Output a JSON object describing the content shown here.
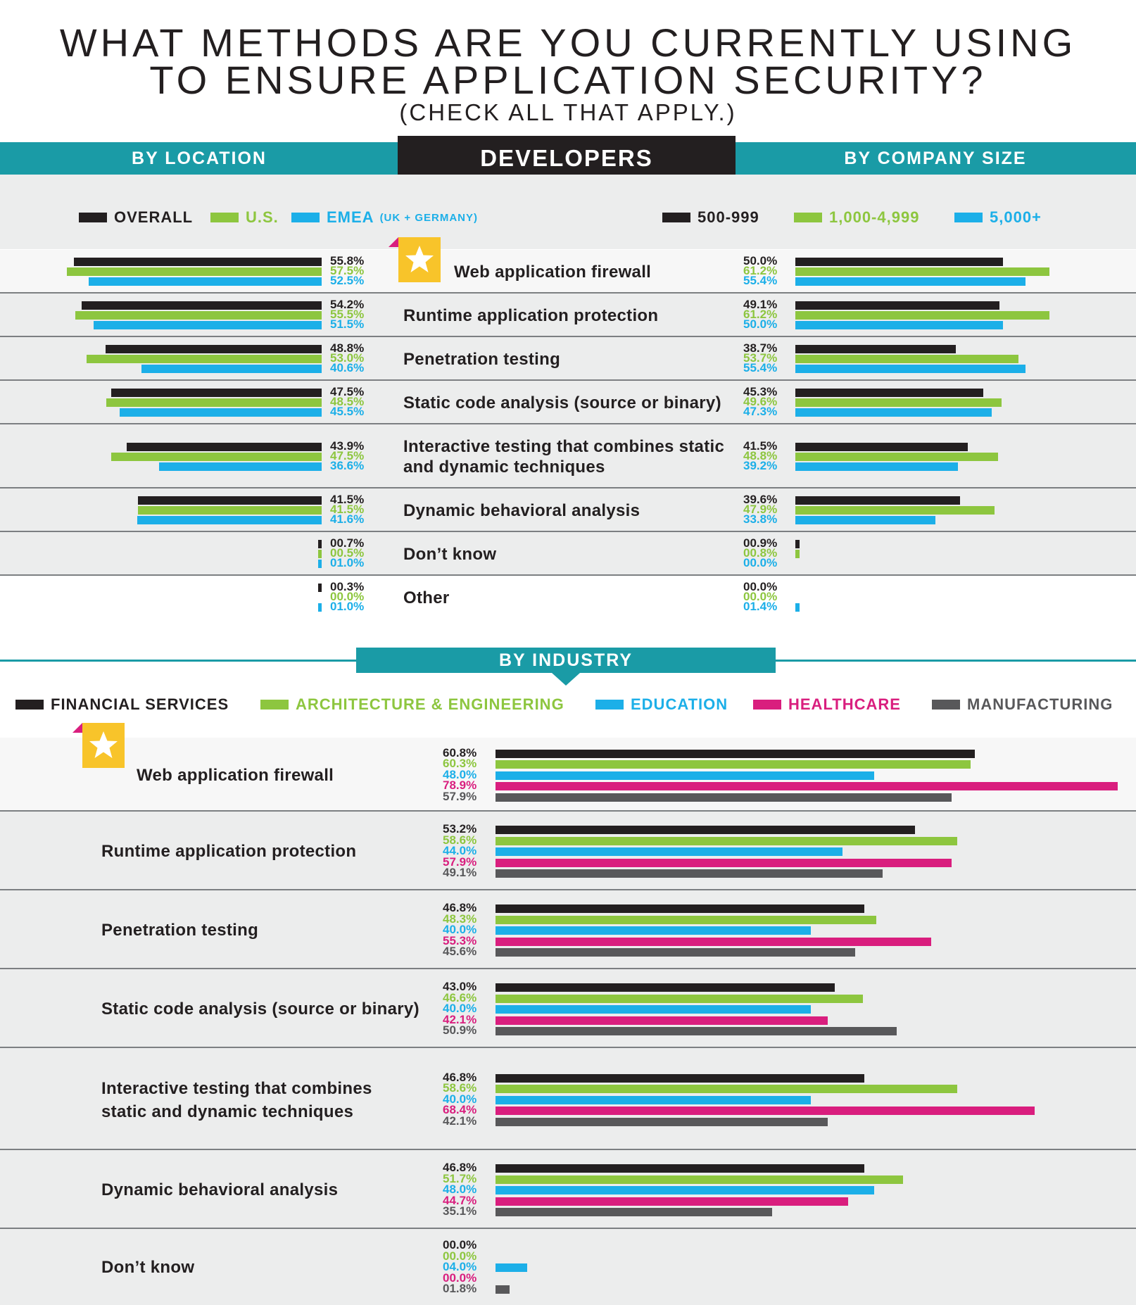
{
  "title": {
    "line1": "WHAT METHODS ARE YOU CURRENTLY USING",
    "line2": "TO ENSURE APPLICATION SECURITY?",
    "subtitle": "(CHECK ALL THAT APPLY.)"
  },
  "header": {
    "by_location": "BY LOCATION",
    "developers": "DEVELOPERS",
    "by_company_size": "BY COMPANY SIZE",
    "by_industry": "BY INDUSTRY"
  },
  "legends": {
    "location": [
      "OVERALL",
      "U.S.",
      "EMEA"
    ],
    "location_note": "(UK + GERMANY)",
    "size": [
      "500-999",
      "1,000-4,999",
      "5,000+"
    ],
    "industry": [
      "FINANCIAL SERVICES",
      "ARCHITECTURE & ENGINEERING",
      "EDUCATION",
      "HEALTHCARE",
      "MANUFACTURING"
    ]
  },
  "colors": {
    "black": "#231f20",
    "green": "#8dc63f",
    "blue": "#1cafe8",
    "pink": "#d91e7e",
    "gray": "#58585a",
    "teal": "#1a9ba6",
    "star": "#f8c42a"
  },
  "icons": {
    "highlight": "star-icon"
  },
  "chart_data": [
    {
      "type": "bar",
      "title": "BY LOCATION",
      "orientation": "horizontal",
      "categories": [
        "Web application firewall",
        "Runtime application protection",
        "Penetration testing",
        "Static code analysis (source or binary)",
        "Interactive testing that combines static and dynamic techniques",
        "Dynamic behavioral analysis",
        "Don’t know",
        "Other"
      ],
      "series": [
        {
          "name": "OVERALL",
          "values": [
            55.8,
            54.2,
            48.8,
            47.5,
            43.9,
            41.5,
            0.7,
            0.3
          ],
          "labels": [
            "55.8%",
            "54.2%",
            "48.8%",
            "47.5%",
            "43.9%",
            "41.5%",
            "00.7%",
            "00.3%"
          ]
        },
        {
          "name": "U.S.",
          "values": [
            57.5,
            55.5,
            53.0,
            48.5,
            47.5,
            41.5,
            0.5,
            0.0
          ],
          "labels": [
            "57.5%",
            "55.5%",
            "53.0%",
            "48.5%",
            "47.5%",
            "41.5%",
            "00.5%",
            "00.0%"
          ]
        },
        {
          "name": "EMEA (UK + GERMANY)",
          "values": [
            52.5,
            51.5,
            40.6,
            45.5,
            36.6,
            41.6,
            1.0,
            1.0
          ],
          "labels": [
            "52.5%",
            "51.5%",
            "40.6%",
            "45.5%",
            "36.6%",
            "41.6%",
            "01.0%",
            "01.0%"
          ]
        }
      ],
      "highlight_category": "Web application firewall"
    },
    {
      "type": "bar",
      "title": "BY COMPANY SIZE",
      "orientation": "horizontal",
      "categories": [
        "Web application firewall",
        "Runtime application protection",
        "Penetration testing",
        "Static code analysis (source or binary)",
        "Interactive testing that combines static and dynamic techniques",
        "Dynamic behavioral analysis",
        "Don’t know",
        "Other"
      ],
      "series": [
        {
          "name": "500-999",
          "values": [
            50.0,
            49.1,
            38.7,
            45.3,
            41.5,
            39.6,
            0.9,
            0.0
          ],
          "labels": [
            "50.0%",
            "49.1%",
            "38.7%",
            "45.3%",
            "41.5%",
            "39.6%",
            "00.9%",
            "00.0%"
          ]
        },
        {
          "name": "1,000-4,999",
          "values": [
            61.2,
            61.2,
            53.7,
            49.6,
            48.8,
            47.9,
            0.8,
            0.0
          ],
          "labels": [
            "61.2%",
            "61.2%",
            "53.7%",
            "49.6%",
            "48.8%",
            "47.9%",
            "00.8%",
            "00.0%"
          ]
        },
        {
          "name": "5,000+",
          "values": [
            55.4,
            50.0,
            55.4,
            47.3,
            39.2,
            33.8,
            0.0,
            1.4
          ],
          "labels": [
            "55.4%",
            "50.0%",
            "55.4%",
            "47.3%",
            "39.2%",
            "33.8%",
            "00.0%",
            "01.4%"
          ]
        }
      ]
    },
    {
      "type": "bar",
      "title": "BY INDUSTRY",
      "orientation": "horizontal",
      "categories": [
        "Web application firewall",
        "Runtime application protection",
        "Penetration testing",
        "Static code analysis (source or binary)",
        "Interactive testing that combines static and dynamic techniques",
        "Dynamic behavioral analysis",
        "Don’t know"
      ],
      "series": [
        {
          "name": "FINANCIAL SERVICES",
          "values": [
            60.8,
            53.2,
            46.8,
            43.0,
            46.8,
            46.8,
            0.0
          ],
          "labels": [
            "60.8%",
            "53.2%",
            "46.8%",
            "43.0%",
            "46.8%",
            "46.8%",
            "00.0%"
          ]
        },
        {
          "name": "ARCHITECTURE & ENGINEERING",
          "values": [
            60.3,
            58.6,
            48.3,
            46.6,
            58.6,
            51.7,
            0.0
          ],
          "labels": [
            "60.3%",
            "58.6%",
            "48.3%",
            "46.6%",
            "58.6%",
            "51.7%",
            "00.0%"
          ]
        },
        {
          "name": "EDUCATION",
          "values": [
            48.0,
            44.0,
            40.0,
            40.0,
            40.0,
            48.0,
            4.0
          ],
          "labels": [
            "48.0%",
            "44.0%",
            "40.0%",
            "40.0%",
            "40.0%",
            "48.0%",
            "04.0%"
          ]
        },
        {
          "name": "HEALTHCARE",
          "values": [
            78.9,
            57.9,
            55.3,
            42.1,
            68.4,
            44.7,
            0.0
          ],
          "labels": [
            "78.9%",
            "57.9%",
            "55.3%",
            "42.1%",
            "68.4%",
            "44.7%",
            "00.0%"
          ]
        },
        {
          "name": "MANUFACTURING",
          "values": [
            57.9,
            49.1,
            45.6,
            50.9,
            42.1,
            35.1,
            1.8
          ],
          "labels": [
            "57.9%",
            "49.1%",
            "45.6%",
            "50.9%",
            "42.1%",
            "35.1%",
            "01.8%"
          ]
        }
      ],
      "highlight_category": "Web application firewall"
    }
  ]
}
